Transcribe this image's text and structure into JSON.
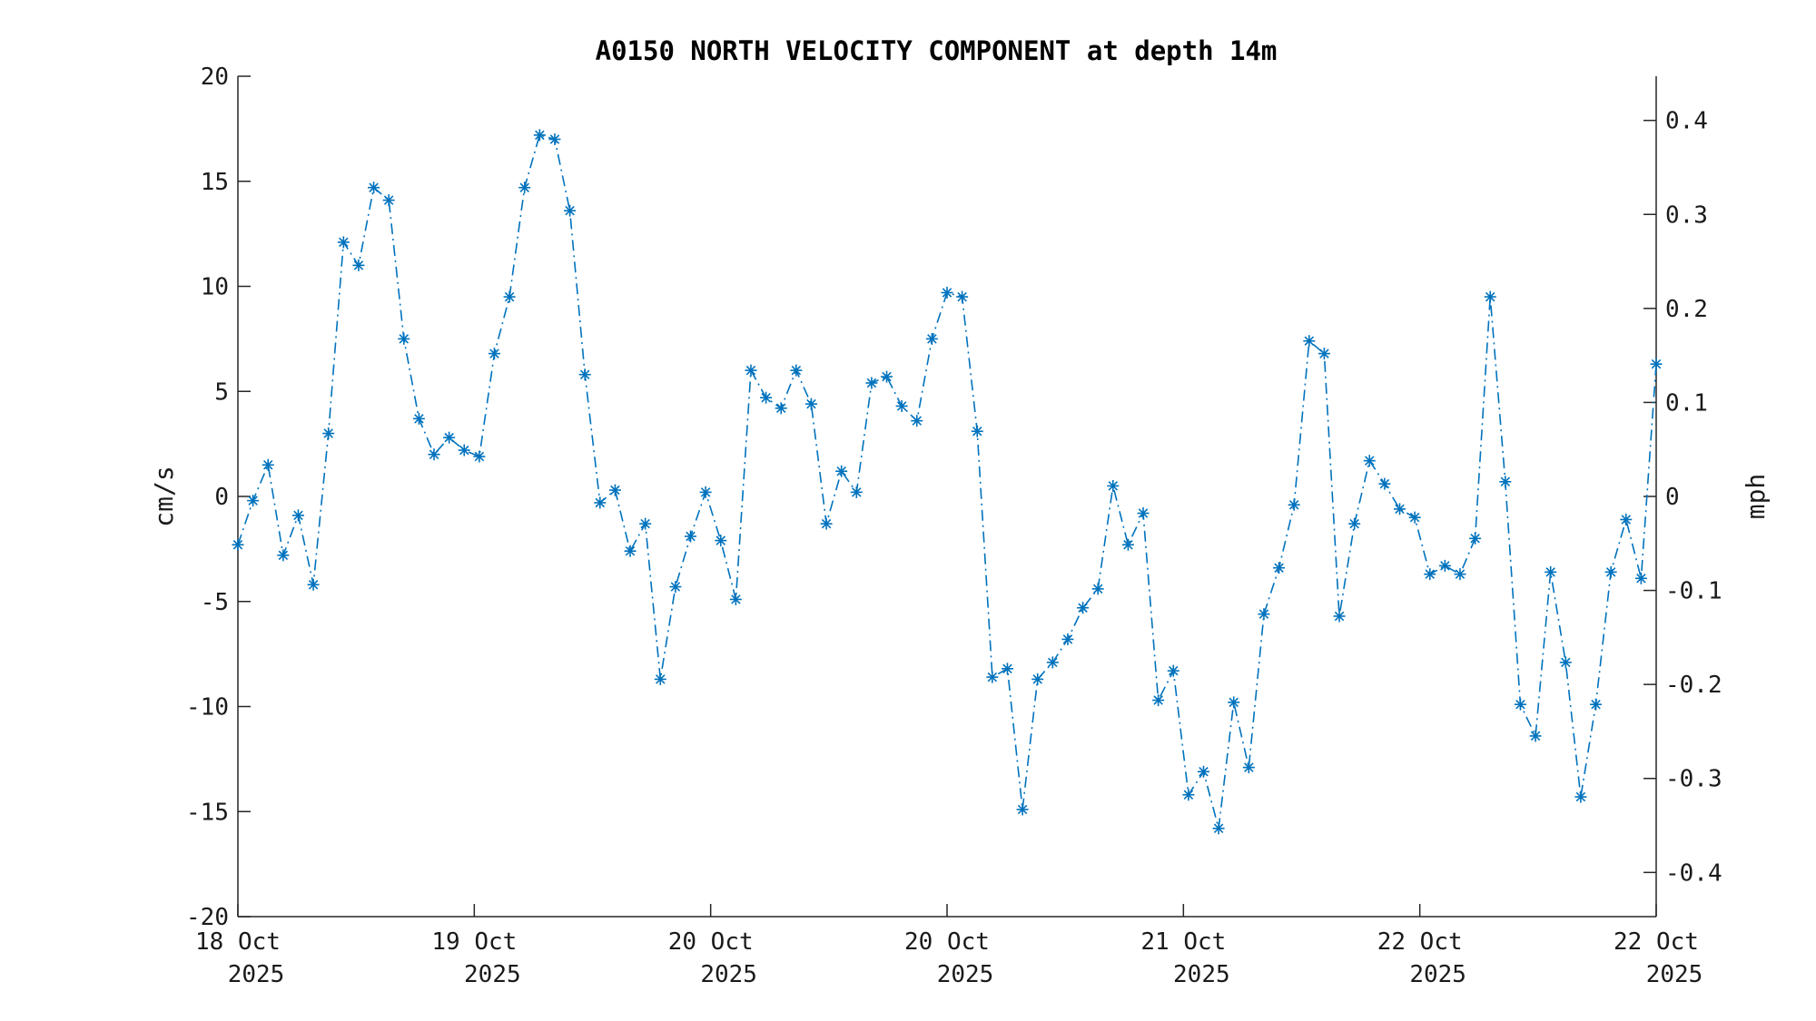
{
  "chart_data": {
    "type": "line",
    "title": "A0150 NORTH VELOCITY COMPONENT at depth 14m",
    "ylabel": "cm/s",
    "ylabel_right": "mph",
    "ylim": [
      -20,
      20
    ],
    "ylim_right": [
      -0.447,
      0.447
    ],
    "yticks": [
      "20",
      "15",
      "10",
      "5",
      "0",
      "-5",
      "-10",
      "-15",
      "-20"
    ],
    "yticks_right": [
      "0.4",
      "0.3",
      "0.2",
      "0.1",
      "0",
      "-0.1",
      "-0.2",
      "-0.3",
      "-0.4"
    ],
    "xticks": [
      {
        "day": "18 Oct",
        "year": "2025"
      },
      {
        "day": "19 Oct",
        "year": "2025"
      },
      {
        "day": "20 Oct",
        "year": "2025"
      },
      {
        "day": "20 Oct",
        "year": "2025"
      },
      {
        "day": "21 Oct",
        "year": "2025"
      },
      {
        "day": "22 Oct",
        "year": "2025"
      },
      {
        "day": "22 Oct",
        "year": "2025"
      }
    ],
    "grid": false,
    "marker": "asterisk",
    "line_style": "dash-dot",
    "color": "#0072bd",
    "series": [
      {
        "values": [
          -2.3,
          -0.2,
          1.5,
          -2.8,
          -0.9,
          -4.2,
          3.0,
          12.1,
          11.0,
          14.7,
          14.1,
          7.5,
          3.7,
          2.0,
          2.8,
          2.2,
          1.9,
          6.8,
          9.5,
          14.7,
          17.2,
          17.0,
          13.6,
          5.8,
          -0.3,
          0.3,
          -2.6,
          -1.3,
          -8.7,
          -4.3,
          -1.9,
          0.2,
          -2.1,
          -4.9,
          6.0,
          4.7,
          4.2,
          6.0,
          4.4,
          -1.3,
          1.2,
          0.2,
          5.4,
          5.7,
          4.3,
          3.6,
          7.5,
          9.7,
          9.5,
          3.1,
          -8.6,
          -8.2,
          -14.9,
          -8.7,
          -7.9,
          -6.8,
          -5.3,
          -4.4,
          0.5,
          -2.3,
          -0.8,
          -9.7,
          -8.3,
          -14.2,
          -13.1,
          -15.8,
          -9.8,
          -12.9,
          -5.6,
          -3.4,
          -0.4,
          7.4,
          6.8,
          -5.7,
          -1.3,
          1.7,
          0.6,
          -0.6,
          -1.0,
          -3.7,
          -3.3,
          -3.7,
          -2.0,
          9.5,
          0.7,
          -9.9,
          -11.4,
          -3.6,
          -7.9,
          -14.3,
          -9.9,
          -3.6,
          -1.1,
          -3.9,
          6.3
        ]
      }
    ]
  }
}
